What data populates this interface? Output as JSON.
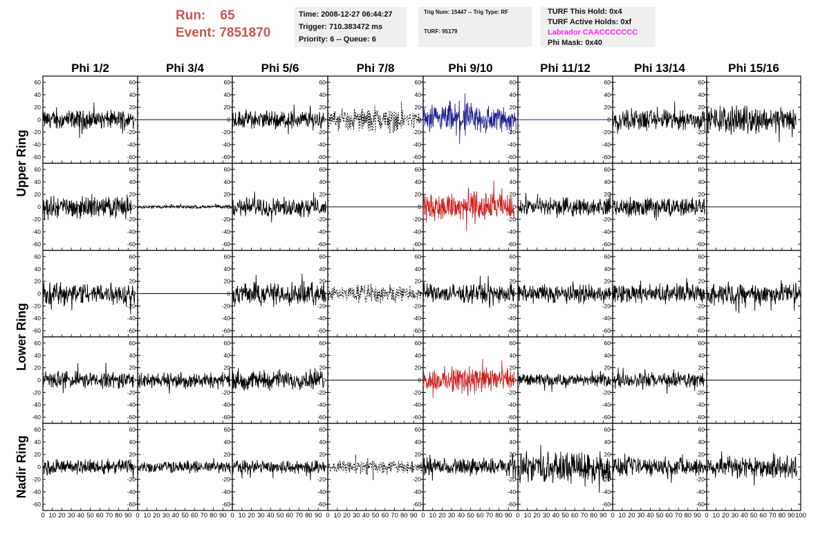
{
  "header": {
    "run_label": "Run:",
    "run_value": "65",
    "event_label": "Event:",
    "event_value": "7851870",
    "time_line": "Time: 2008-12-27 06:44:27",
    "trigger_line": "Trigger: 710.383472 ms",
    "priority_line": "Priority: 6 -- Queue: 6",
    "trig_line": "Trig Num: 15447 -- Trig Type: RF",
    "turf_line": "TURF: 95179",
    "turf_hold_line": "TURF This Hold: 0x4",
    "turf_active_line": "TURF Active Holds: 0xf",
    "labrador_line": "Labrador CAACCCCCCC",
    "phi_mask_line": "Phi Mask: 0x40",
    "run_color": "#c8564f",
    "labrador_color": "#ff22ff"
  },
  "chart_data": {
    "type": "line",
    "columns": [
      "Phi 1/2",
      "Phi 3/4",
      "Phi 5/6",
      "Phi 7/8",
      "Phi 9/10",
      "Phi 11/12",
      "Phi 13/14",
      "Phi 15/16"
    ],
    "ring_labels": [
      "Upper Ring",
      "Lower Ring",
      "Nadir Ring"
    ],
    "ylim": [
      -70,
      70
    ],
    "xlim": [
      0,
      100
    ],
    "y_ticks": [
      -60,
      -40,
      -20,
      0,
      20,
      40,
      60
    ],
    "x_ticks": [
      0,
      10,
      20,
      30,
      40,
      50,
      60,
      70,
      80,
      90,
      100
    ],
    "x_tick_labels": [
      "0",
      "10",
      "20",
      "30",
      "40",
      "50",
      "60",
      "70",
      "80",
      "90",
      "100"
    ],
    "y_tick_labels": [
      "-60",
      "-40",
      "-20",
      "0",
      "20",
      "40",
      "60"
    ],
    "grid": false,
    "colors": {
      "normal": "#000000",
      "blue": "#1f1f8f",
      "red": "#c81e1e"
    },
    "panels": [
      {
        "row": 0,
        "col": 0,
        "amp": 11,
        "style": "normal",
        "xmax": 96
      },
      {
        "row": 0,
        "col": 1,
        "amp": 0,
        "style": "flat",
        "xmax": 100
      },
      {
        "row": 0,
        "col": 2,
        "amp": 11,
        "style": "normal",
        "xmax": 96
      },
      {
        "row": 0,
        "col": 3,
        "amp": 11,
        "style": "dashed",
        "xmax": 98
      },
      {
        "row": 0,
        "col": 4,
        "amp": 16,
        "style": "blue",
        "xmax": 98
      },
      {
        "row": 0,
        "col": 5,
        "amp": 0,
        "style": "flat-blue",
        "xmax": 100
      },
      {
        "row": 0,
        "col": 6,
        "amp": 12,
        "style": "normal",
        "xmax": 98
      },
      {
        "row": 0,
        "col": 7,
        "amp": 15,
        "style": "normal",
        "xmax": 95
      },
      {
        "row": 1,
        "col": 0,
        "amp": 12,
        "style": "normal",
        "xmax": 94
      },
      {
        "row": 1,
        "col": 1,
        "amp": 2,
        "style": "normal",
        "xmax": 99
      },
      {
        "row": 1,
        "col": 2,
        "amp": 11,
        "style": "normal",
        "xmax": 98
      },
      {
        "row": 1,
        "col": 3,
        "amp": 0,
        "style": "flat",
        "xmax": 100
      },
      {
        "row": 1,
        "col": 4,
        "amp": 16,
        "style": "red",
        "xmax": 96
      },
      {
        "row": 1,
        "col": 5,
        "amp": 10,
        "style": "normal",
        "xmax": 98
      },
      {
        "row": 1,
        "col": 6,
        "amp": 11,
        "style": "normal",
        "xmax": 98
      },
      {
        "row": 1,
        "col": 7,
        "amp": 0,
        "style": "flat",
        "xmax": 100
      },
      {
        "row": 2,
        "col": 0,
        "amp": 13,
        "style": "normal",
        "xmax": 97
      },
      {
        "row": 2,
        "col": 1,
        "amp": 0,
        "style": "flat",
        "xmax": 100
      },
      {
        "row": 2,
        "col": 2,
        "amp": 13,
        "style": "normal",
        "xmax": 98
      },
      {
        "row": 2,
        "col": 3,
        "amp": 9,
        "style": "dashed",
        "xmax": 99
      },
      {
        "row": 2,
        "col": 4,
        "amp": 11,
        "style": "normal",
        "xmax": 96
      },
      {
        "row": 2,
        "col": 5,
        "amp": 11,
        "style": "normal",
        "xmax": 98
      },
      {
        "row": 2,
        "col": 6,
        "amp": 11,
        "style": "normal",
        "xmax": 98
      },
      {
        "row": 2,
        "col": 7,
        "amp": 12,
        "style": "normal",
        "xmax": 100
      },
      {
        "row": 3,
        "col": 0,
        "amp": 10,
        "style": "normal",
        "xmax": 96
      },
      {
        "row": 3,
        "col": 1,
        "amp": 9,
        "style": "normal",
        "xmax": 98
      },
      {
        "row": 3,
        "col": 2,
        "amp": 11,
        "style": "normal",
        "xmax": 96
      },
      {
        "row": 3,
        "col": 3,
        "amp": 0,
        "style": "flat",
        "xmax": 100
      },
      {
        "row": 3,
        "col": 4,
        "amp": 14,
        "style": "red",
        "xmax": 96
      },
      {
        "row": 3,
        "col": 5,
        "amp": 7,
        "style": "normal",
        "xmax": 98
      },
      {
        "row": 3,
        "col": 6,
        "amp": 9,
        "style": "normal",
        "xmax": 97
      },
      {
        "row": 3,
        "col": 7,
        "amp": 0,
        "style": "flat",
        "xmax": 100
      },
      {
        "row": 4,
        "col": 0,
        "amp": 9,
        "style": "normal",
        "xmax": 96
      },
      {
        "row": 4,
        "col": 1,
        "amp": 7,
        "style": "normal",
        "xmax": 98
      },
      {
        "row": 4,
        "col": 2,
        "amp": 8,
        "style": "normal",
        "xmax": 98
      },
      {
        "row": 4,
        "col": 3,
        "amp": 7,
        "style": "dashed",
        "xmax": 99
      },
      {
        "row": 4,
        "col": 4,
        "amp": 10,
        "style": "normal",
        "xmax": 98
      },
      {
        "row": 4,
        "col": 5,
        "amp": 18,
        "style": "normal",
        "xmax": 98
      },
      {
        "row": 4,
        "col": 6,
        "amp": 11,
        "style": "normal",
        "xmax": 99
      },
      {
        "row": 4,
        "col": 7,
        "amp": 13,
        "style": "normal",
        "xmax": 96
      }
    ]
  }
}
